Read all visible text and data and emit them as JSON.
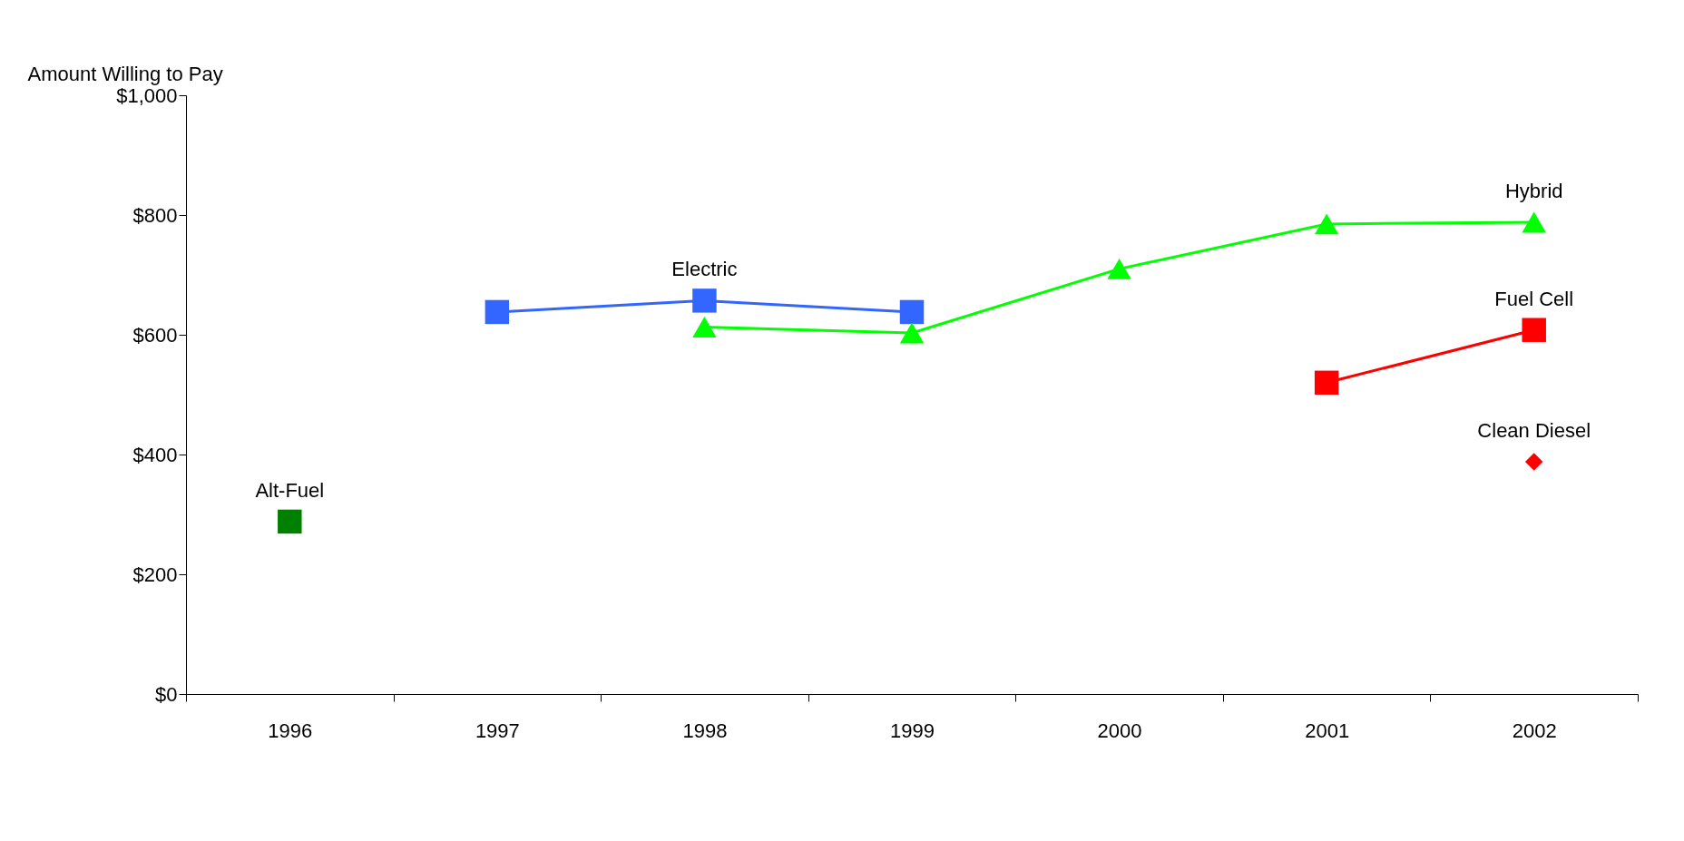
{
  "chart_data": {
    "type": "line",
    "ylabel": "Amount Willing to Pay",
    "categories": [
      "1996",
      "1997",
      "1998",
      "1999",
      "2000",
      "2001",
      "2002"
    ],
    "series": [
      {
        "name": "Alt-Fuel",
        "color": "#008000",
        "marker": "square",
        "values": [
          288,
          null,
          null,
          null,
          null,
          null,
          null
        ]
      },
      {
        "name": "Electric",
        "color": "#3366ff",
        "marker": "square",
        "values": [
          null,
          638,
          657,
          638,
          null,
          null,
          null
        ]
      },
      {
        "name": "Hybrid",
        "color": "#00ff00",
        "marker": "triangle",
        "values": [
          null,
          null,
          613,
          603,
          710,
          785,
          788
        ]
      },
      {
        "name": "Fuel Cell",
        "color": "#ff0000",
        "marker": "square",
        "values": [
          null,
          null,
          null,
          null,
          null,
          520,
          608
        ]
      },
      {
        "name": "Clean Diesel",
        "color": "#ff0000",
        "marker": "diamond",
        "type": "scatter",
        "values": [
          null,
          null,
          null,
          null,
          null,
          null,
          388
        ]
      }
    ],
    "ylim": [
      0,
      1000
    ],
    "yticks": [
      {
        "value": 0,
        "label": "$0"
      },
      {
        "value": 200,
        "label": "$200"
      },
      {
        "value": 400,
        "label": "$400"
      },
      {
        "value": 600,
        "label": "$600"
      },
      {
        "value": 800,
        "label": "$800"
      },
      {
        "value": 1000,
        "label": "$1,000"
      }
    ],
    "grid": false,
    "line_style": "solid"
  }
}
